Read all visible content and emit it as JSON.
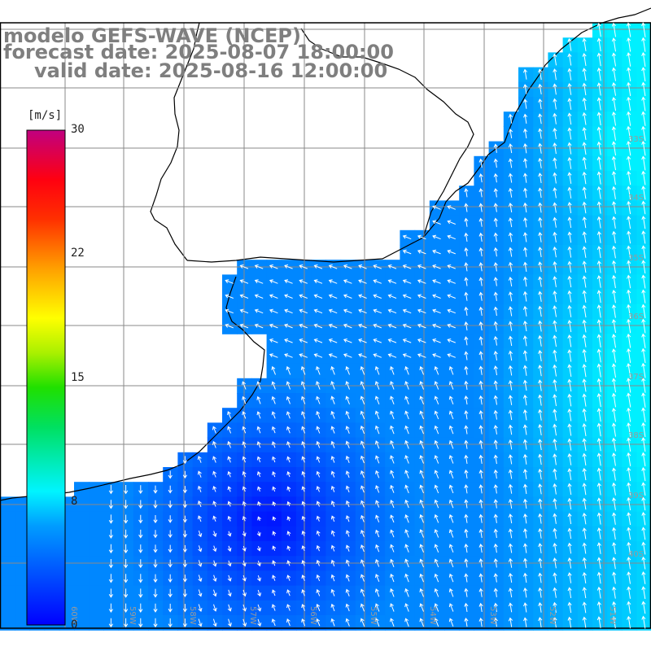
{
  "title": {
    "model": "modelo GEFS-WAVE (NCEP)",
    "forecast": "forecast date: 2025-08-07 18:00:00",
    "valid": "valid date: 2025-08-16 12:00:00"
  },
  "colorbar": {
    "units": "[m/s]",
    "min": 0,
    "max": 30,
    "ticks": [
      "30",
      "22",
      "15",
      "8",
      "0"
    ],
    "colors": [
      "#0000ff",
      "#00a0ff",
      "#00ffff",
      "#00ff80",
      "#00e000",
      "#80ff00",
      "#ffff00",
      "#ffa000",
      "#ff5000",
      "#ff0000",
      "#e00040",
      "#c00080"
    ]
  },
  "map": {
    "land_color": "#ffffff",
    "grid": true,
    "lat_labels": [
      "33S",
      "34S",
      "35S",
      "36S",
      "37S",
      "38S",
      "39S",
      "40S"
    ],
    "lon_labels": [
      "60W",
      "59W",
      "58W",
      "57W",
      "56W",
      "55W",
      "54W",
      "53W",
      "52W",
      "51W"
    ]
  }
}
